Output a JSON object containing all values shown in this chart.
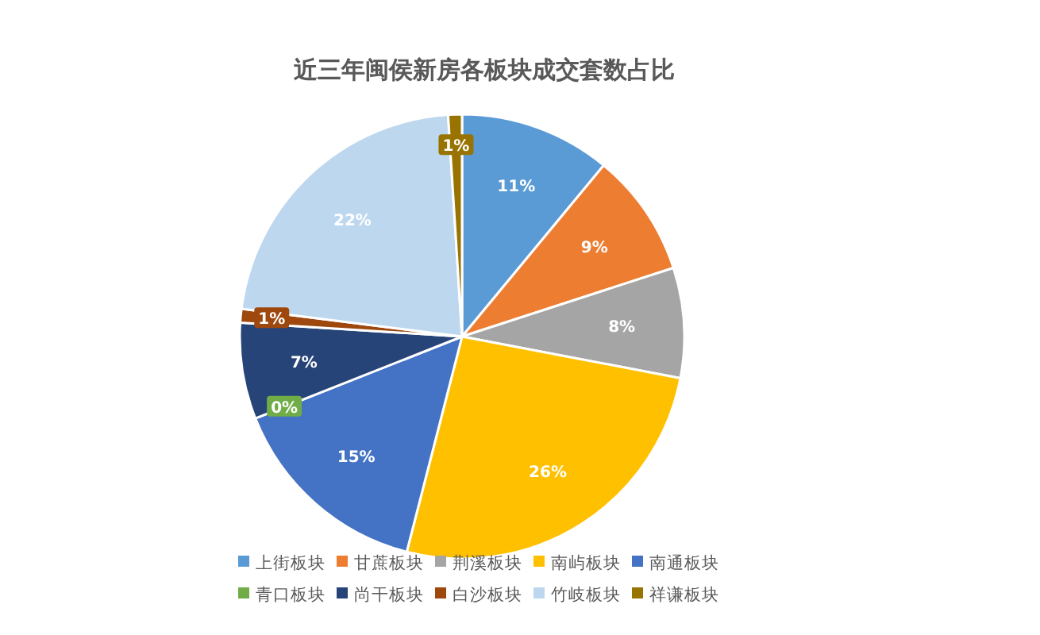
{
  "chart_data": {
    "type": "pie",
    "title": "近三年闽侯新房各板块成交套数占比",
    "categories": [
      "上街板块",
      "甘蔗板块",
      "荆溪板块",
      "南屿板块",
      "南通板块",
      "青口板块",
      "尚干板块",
      "白沙板块",
      "竹岐板块",
      "祥谦板块"
    ],
    "values": [
      11,
      9,
      8,
      26,
      15,
      0,
      7,
      1,
      22,
      1
    ],
    "colors": [
      "#5b9bd5",
      "#ed7d31",
      "#a5a5a5",
      "#ffc000",
      "#4472c4",
      "#70ad47",
      "#264478",
      "#9e480e",
      "#bdd7ee",
      "#997300"
    ],
    "value_labels": [
      "11%",
      "9%",
      "8%",
      "26%",
      "15%",
      "0%",
      "7%",
      "1%",
      "22%",
      "1%"
    ],
    "legend": "bottom"
  }
}
